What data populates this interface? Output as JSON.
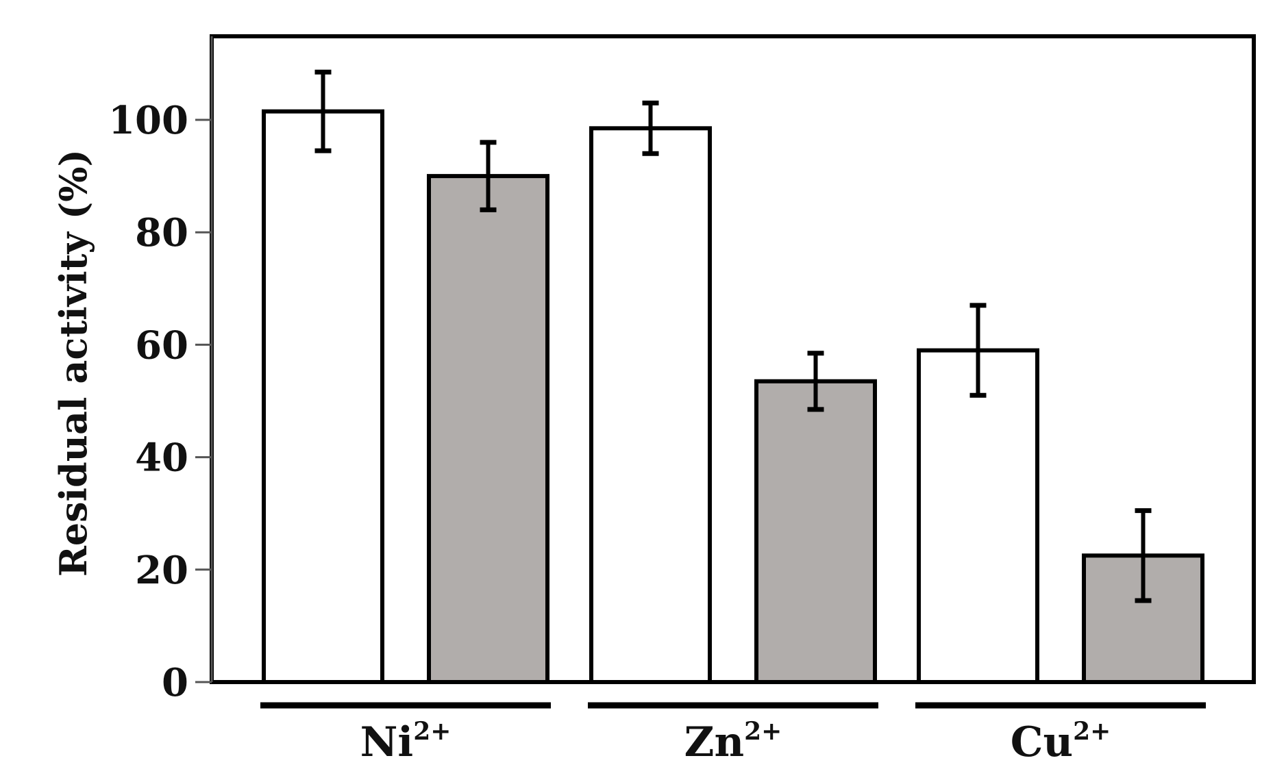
{
  "chart_data": {
    "type": "bar",
    "ylabel": "Residual activity (%)",
    "xlabel": "",
    "ylim": [
      0,
      100
    ],
    "yticks": [
      0,
      20,
      40,
      60,
      80,
      100
    ],
    "groups": [
      {
        "base": "Ni",
        "sup": "2+"
      },
      {
        "base": "Zn",
        "sup": "2+"
      },
      {
        "base": "Cu",
        "sup": "2+"
      }
    ],
    "series": [
      {
        "color": "#ffffff",
        "values": [
          101.5,
          98.5,
          59.0
        ],
        "errors": [
          7.0,
          4.5,
          8.0
        ]
      },
      {
        "color": "#b1adab",
        "values": [
          90.0,
          53.5,
          22.5
        ],
        "errors": [
          6.0,
          5.0,
          8.0
        ]
      }
    ],
    "grid": false,
    "legend": "none"
  }
}
